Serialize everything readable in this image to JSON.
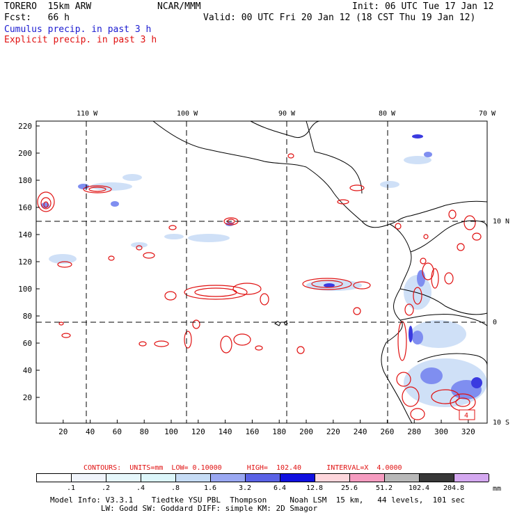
{
  "header": {
    "model": "TORERO  15km ARW",
    "org": "NCAR/MMM",
    "init": "Init: 06 UTC Tue 17 Jan 12",
    "fcst": "Fcst:   66 h",
    "valid": "Valid: 00 UTC Fri 20 Jan 12 (18 CST Thu 19 Jan 12)",
    "field1": "Cumulus precip. in past 3 h",
    "field2": "Explicit precip. in past 3 h"
  },
  "map": {
    "lon_labels_top": [
      "110 W",
      "100 W",
      "90 W",
      "80 W",
      "70 W"
    ],
    "lat_labels_right": [
      "10 N",
      "0",
      "10 S"
    ],
    "y_ticks": [
      "220",
      "200",
      "180",
      "160",
      "140",
      "120",
      "100",
      "80",
      "60",
      "40",
      "20"
    ],
    "x_ticks": [
      "20",
      "40",
      "60",
      "80",
      "100",
      "120",
      "140",
      "160",
      "180",
      "200",
      "220",
      "240",
      "260",
      "280",
      "300",
      "320"
    ],
    "box_label": "4",
    "colors": {
      "coast": "#000000",
      "cumulus_light": "#cfe0f7",
      "cumulus_mid": "#7f8ef0",
      "cumulus_dark": "#3a3ae0",
      "explicit_contour": "#e01010"
    }
  },
  "contour_info": "CONTOURS:  UNITS=mm  LOW= 0.10000      HIGH=  102.40      INTERVAL=X  4.0000",
  "colorbar": {
    "labels": [
      ".1",
      ".2",
      ".4",
      ".8",
      "1.6",
      "3.2",
      "6.4",
      "12.8",
      "25.6",
      "51.2",
      "102.4",
      "204.8"
    ],
    "unit": "mm",
    "colors": [
      "#ffffff",
      "#f0f4fb",
      "#e6f7fb",
      "#dcf6fa",
      "#c6dcf5",
      "#9aa8f2",
      "#5a62e6",
      "#1010e0",
      "#fdd6dc",
      "#f59cc0",
      "#b8b8b8",
      "#383838",
      "#d4a8f0"
    ]
  },
  "footer": {
    "line1": "Model Info: V3.3.1    Tiedtke YSU PBL  Thompson     Noah LSM  15 km,   44 levels,  101 sec",
    "line2": "           LW: Godd SW: Goddard DIFF: simple KM: 2D Smagor"
  }
}
